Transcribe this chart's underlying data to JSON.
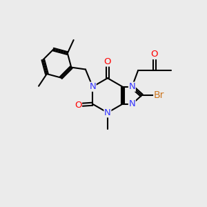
{
  "bg_color": "#ebebeb",
  "bond_color": "#000000",
  "N_color": "#3333ff",
  "O_color": "#ff0000",
  "Br_color": "#cc7722",
  "lw": 1.5,
  "fs": 9.5,
  "fig_w": 3.0,
  "fig_h": 3.0,
  "dpi": 100,
  "xlim": [
    0,
    10
  ],
  "ylim": [
    0,
    10
  ]
}
